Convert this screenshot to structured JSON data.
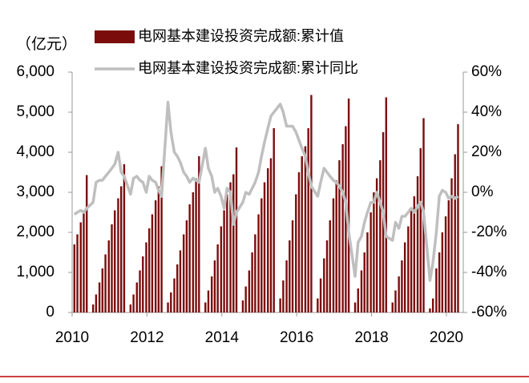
{
  "chart_data": {
    "type": "bar-line",
    "annotation": "（亿元）",
    "x": [
      2010.06,
      2010.14,
      2010.23,
      2010.31,
      2010.39,
      2010.56,
      2010.64,
      2010.73,
      2010.81,
      2010.89,
      2010.98,
      2011.06,
      2011.14,
      2011.23,
      2011.31,
      2011.39,
      2011.56,
      2011.64,
      2011.73,
      2011.81,
      2011.89,
      2011.98,
      2012.06,
      2012.14,
      2012.23,
      2012.31,
      2012.39,
      2012.56,
      2012.64,
      2012.73,
      2012.81,
      2012.89,
      2012.98,
      2013.06,
      2013.14,
      2013.23,
      2013.31,
      2013.39,
      2013.56,
      2013.64,
      2013.73,
      2013.81,
      2013.89,
      2013.98,
      2014.06,
      2014.14,
      2014.23,
      2014.31,
      2014.39,
      2014.56,
      2014.64,
      2014.73,
      2014.81,
      2014.89,
      2014.98,
      2015.06,
      2015.14,
      2015.23,
      2015.31,
      2015.39,
      2015.56,
      2015.64,
      2015.73,
      2015.81,
      2015.89,
      2015.98,
      2016.06,
      2016.14,
      2016.23,
      2016.31,
      2016.39,
      2016.56,
      2016.64,
      2016.73,
      2016.81,
      2016.89,
      2016.98,
      2017.06,
      2017.14,
      2017.23,
      2017.31,
      2017.39,
      2017.56,
      2017.64,
      2017.73,
      2017.81,
      2017.89,
      2017.98,
      2018.06,
      2018.14,
      2018.23,
      2018.31,
      2018.39,
      2018.56,
      2018.64,
      2018.73,
      2018.81,
      2018.89,
      2018.98,
      2019.06,
      2019.14,
      2019.23,
      2019.31,
      2019.39,
      2019.56,
      2019.64,
      2019.73,
      2019.81,
      2019.89,
      2019.98,
      2020.06,
      2020.14,
      2020.23,
      2020.31
    ],
    "series": [
      {
        "name": "电网基本建设投资完成额:累计值",
        "type": "bar",
        "color": "#7b0c0c",
        "values": [
          1700,
          1950,
          2250,
          2550,
          3430,
          200,
          450,
          750,
          1100,
          1450,
          1800,
          2200,
          2550,
          2850,
          3150,
          3700,
          200,
          450,
          750,
          1050,
          1400,
          1750,
          2100,
          2450,
          2800,
          3150,
          3650,
          250,
          500,
          850,
          1200,
          1550,
          1950,
          2300,
          2700,
          3000,
          3350,
          3900,
          250,
          550,
          900,
          1300,
          1700,
          2150,
          2550,
          2950,
          3250,
          3450,
          4120,
          300,
          650,
          1050,
          1500,
          1950,
          2450,
          2850,
          3250,
          3600,
          3850,
          4600,
          350,
          800,
          1300,
          1800,
          2300,
          2950,
          3500,
          3900,
          4150,
          4600,
          5430,
          350,
          850,
          1350,
          1800,
          2300,
          2850,
          3300,
          3800,
          4200,
          4650,
          5340,
          250,
          600,
          1050,
          1500,
          2000,
          2500,
          3000,
          3350,
          3800,
          4500,
          5370,
          250,
          550,
          900,
          1300,
          1750,
          2150,
          2550,
          2900,
          3400,
          4100,
          4850,
          100,
          350,
          1100,
          1500,
          2000,
          2400,
          2800,
          3350,
          3950,
          4700
        ]
      },
      {
        "name": "电网基本建设投资完成额:累计同比",
        "type": "line",
        "axis": "y2",
        "color": "#bfbfbf",
        "values": [
          -11,
          -10,
          -9,
          -10,
          -8,
          -5,
          5,
          6,
          6,
          8,
          10,
          12,
          14,
          20,
          10,
          8,
          -1,
          7,
          8,
          6,
          5,
          0,
          8,
          6,
          5,
          1,
          -2,
          45,
          30,
          20,
          18,
          15,
          10,
          8,
          5,
          7,
          6,
          5,
          22,
          12,
          8,
          0,
          2,
          -2,
          -8,
          2,
          0,
          -16,
          -10,
          -5,
          0,
          -1,
          2,
          5,
          10,
          18,
          25,
          32,
          38,
          40,
          44,
          40,
          33,
          33,
          33,
          30,
          26,
          22,
          18,
          10,
          3,
          -2,
          5,
          12,
          10,
          8,
          6,
          5,
          3,
          0,
          -5,
          -20,
          -42,
          -25,
          -22,
          -15,
          -10,
          -5,
          -5,
          0,
          -5,
          -10,
          -22,
          -24,
          -15,
          -18,
          -12,
          -12,
          -10,
          -8,
          -10,
          -7,
          -5,
          -10,
          -44,
          -35,
          -20,
          -2,
          1,
          0,
          -3,
          -2,
          -3,
          -2
        ]
      }
    ],
    "xlim": [
      2010,
      2020.45
    ],
    "xticks": [
      2010,
      2012,
      2014,
      2016,
      2018,
      2020
    ],
    "ylim": [
      0,
      6000
    ],
    "yticks": [
      0,
      {
        "value": 1000,
        "label": "1,000"
      },
      {
        "value": 2000,
        "label": "2,000"
      },
      {
        "value": 3000,
        "label": "3,000"
      },
      {
        "value": 4000,
        "label": "4,000"
      },
      {
        "value": 5000,
        "label": "5,000"
      },
      {
        "value": 6000,
        "label": "6,000"
      }
    ],
    "y2lim": [
      -60,
      60
    ],
    "y2ticks": [
      {
        "value": -60,
        "label": "-60%"
      },
      {
        "value": -40,
        "label": "-40%"
      },
      {
        "value": -20,
        "label": "-20%"
      },
      {
        "value": 0,
        "label": "0%"
      },
      {
        "value": 20,
        "label": "20%"
      },
      {
        "value": 40,
        "label": "40%"
      },
      {
        "value": 60,
        "label": "60%"
      }
    ]
  }
}
